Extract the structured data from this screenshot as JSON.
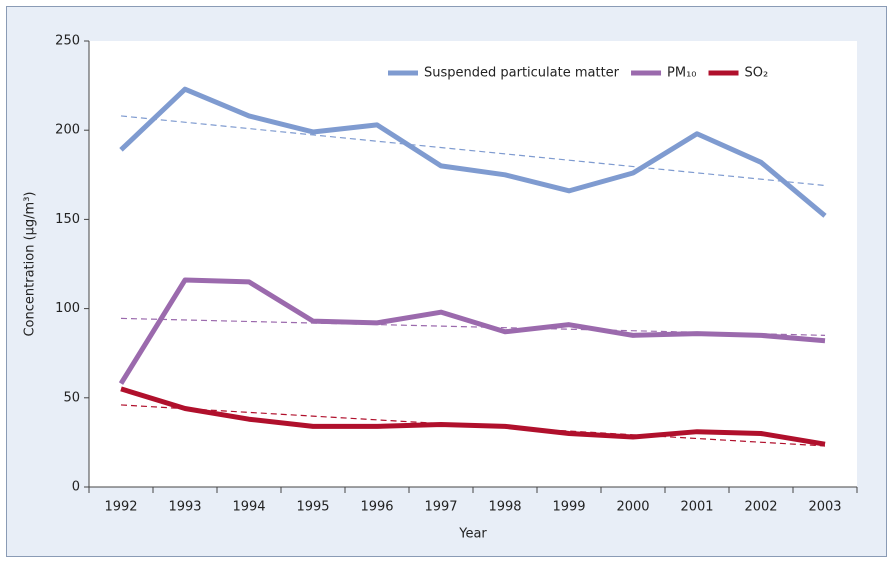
{
  "chart_data": {
    "type": "line",
    "y_label": "Concentration (µg/m³)",
    "x_label": "Year",
    "categories": [
      "1992",
      "1993",
      "1994",
      "1995",
      "1996",
      "1997",
      "1998",
      "1999",
      "2000",
      "2001",
      "2002",
      "2003"
    ],
    "series": [
      {
        "name": "Suspended particulate matter",
        "color": "#7f9bd0",
        "values": [
          189,
          223,
          208,
          199,
          203,
          180,
          175,
          166,
          176,
          198,
          182,
          152
        ],
        "trend": [
          208,
          169
        ]
      },
      {
        "name": "PM₁₀",
        "color": "#9b6aad",
        "values": [
          58,
          116,
          115,
          93,
          92,
          98,
          87,
          91,
          85,
          86,
          85,
          82
        ],
        "trend": [
          94.5,
          85
        ]
      },
      {
        "name": "SO₂",
        "color": "#b0102c",
        "values": [
          55,
          44,
          38,
          34,
          34,
          35,
          34,
          30,
          28,
          31,
          30,
          24
        ],
        "trend": [
          46,
          23
        ]
      }
    ],
    "ylim": [
      0,
      250
    ],
    "yticks": [
      0,
      50,
      100,
      150,
      200,
      250
    ],
    "grid": false,
    "legend": "top"
  }
}
